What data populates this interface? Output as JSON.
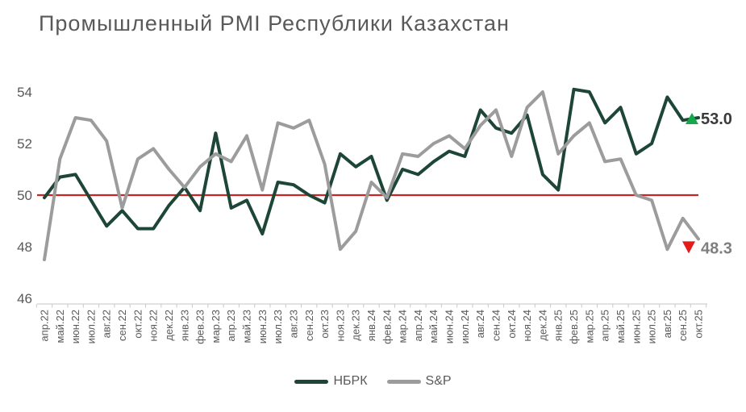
{
  "title": "Промышленный PMI Республики Казахстан",
  "colors": {
    "nbrk_line": "#1e4637",
    "sp_line": "#9c9c9c",
    "baseline_red": "#c92525",
    "axis_line": "#d8d8d8",
    "tick_mark": "#c9c9c9",
    "axis_label": "#595959",
    "up_marker_green": "#14a84b",
    "down_marker_red": "#e41b1b",
    "end_label_dark": "#3a3a3a",
    "end_label_gray": "#7f7f7f"
  },
  "end_labels": {
    "nbrk": "53.0",
    "sp": "48.3"
  },
  "legend": {
    "items": [
      {
        "label": "НБРК",
        "color": "#1e4637"
      },
      {
        "label": "S&P",
        "color": "#9c9c9c"
      }
    ]
  },
  "chart_data": {
    "type": "line",
    "title": "Промышленный PMI Республики Казахстан",
    "xlabel": "",
    "ylabel": "",
    "ylim": [
      46,
      54
    ],
    "grid": false,
    "legend_position": "bottom",
    "y_ticks": [
      54,
      52,
      50,
      48,
      46
    ],
    "reference_line": 50,
    "categories": [
      "апр.22",
      "май.22",
      "июн.22",
      "июл.22",
      "авг.22",
      "сен.22",
      "окт.22",
      "ноя.22",
      "дек.22",
      "янв.23",
      "фев.23",
      "мар.23",
      "апр.23",
      "май.23",
      "июн.23",
      "июл.23",
      "авг.23",
      "сен.23",
      "окт.23",
      "ноя.23",
      "дек.23",
      "янв.24",
      "фев.24",
      "мар.24",
      "апр.24",
      "май.24",
      "июн.24",
      "июл.24",
      "авг.24",
      "сен.24",
      "окт.24",
      "ноя.24",
      "дек.24",
      "янв.25",
      "фев.25",
      "мар.25",
      "апр.25",
      "май.25",
      "июн.25",
      "июл.25",
      "авг.25",
      "сен.25",
      "окт.25"
    ],
    "series": [
      {
        "name": "НБРК",
        "color": "#1e4637",
        "values": [
          49.9,
          50.7,
          50.8,
          49.8,
          48.8,
          49.4,
          48.7,
          48.7,
          49.6,
          50.3,
          49.4,
          52.4,
          49.5,
          49.8,
          48.5,
          50.5,
          50.4,
          50.0,
          49.7,
          51.6,
          51.1,
          51.5,
          49.8,
          51.0,
          50.8,
          51.3,
          51.7,
          51.5,
          53.3,
          52.6,
          52.4,
          53.1,
          50.8,
          50.2,
          54.1,
          54.0,
          52.8,
          53.4,
          51.6,
          52.0,
          53.8,
          52.9,
          53.0
        ],
        "last_value_label": "53.0"
      },
      {
        "name": "S&P",
        "color": "#9c9c9c",
        "values": [
          47.5,
          51.4,
          53.0,
          52.9,
          52.1,
          49.5,
          51.4,
          51.8,
          51.0,
          50.3,
          51.1,
          51.6,
          51.3,
          52.3,
          50.2,
          52.8,
          52.6,
          52.9,
          51.2,
          47.9,
          48.6,
          50.5,
          49.9,
          51.6,
          51.5,
          52.0,
          52.3,
          51.8,
          52.7,
          53.3,
          51.5,
          53.4,
          54.0,
          51.6,
          52.3,
          52.8,
          51.3,
          51.4,
          50.0,
          49.8,
          47.9,
          49.1,
          48.3
        ],
        "last_value_label": "48.3"
      }
    ]
  }
}
